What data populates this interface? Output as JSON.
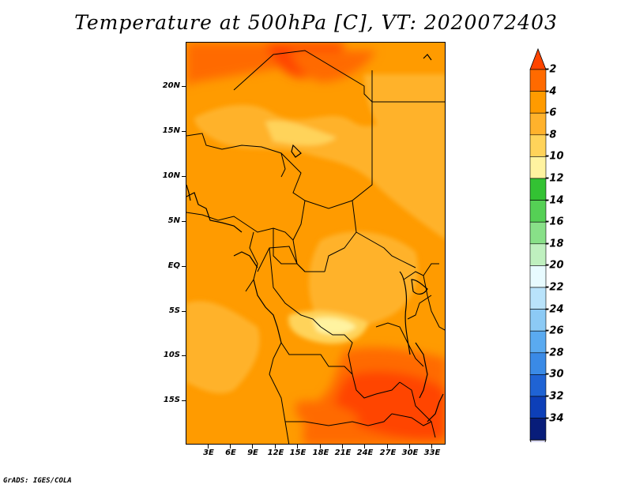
{
  "title": "Temperature at 500hPa [C], VT: 2020072403",
  "credit": "GrADS: IGES/COLA",
  "map": {
    "lat_labels": [
      "20N",
      "15N",
      "10N",
      "5N",
      "EQ",
      "5S",
      "10S",
      "15S"
    ],
    "lon_labels": [
      "3E",
      "6E",
      "9E",
      "12E",
      "15E",
      "18E",
      "21E",
      "24E",
      "27E",
      "30E",
      "33E"
    ]
  },
  "colorbar": {
    "labels": [
      "-2",
      "-4",
      "-6",
      "-8",
      "-10",
      "-12",
      "-14",
      "-16",
      "-18",
      "-20",
      "-22",
      "-24",
      "-26",
      "-28",
      "-30",
      "-32",
      "-34"
    ],
    "colors": [
      "#ff4500",
      "#ff6a00",
      "#ff9b00",
      "#ffb22c",
      "#ffd35a",
      "#fff3a0",
      "#33c233",
      "#55d055",
      "#88e088",
      "#bff0bf",
      "#e8fbff",
      "#b9e3fb",
      "#8ccaf5",
      "#5aaaf0",
      "#3a8ae6",
      "#1f63d4",
      "#0d3fb8",
      "#081d7a",
      "#dcdcf5"
    ]
  }
}
